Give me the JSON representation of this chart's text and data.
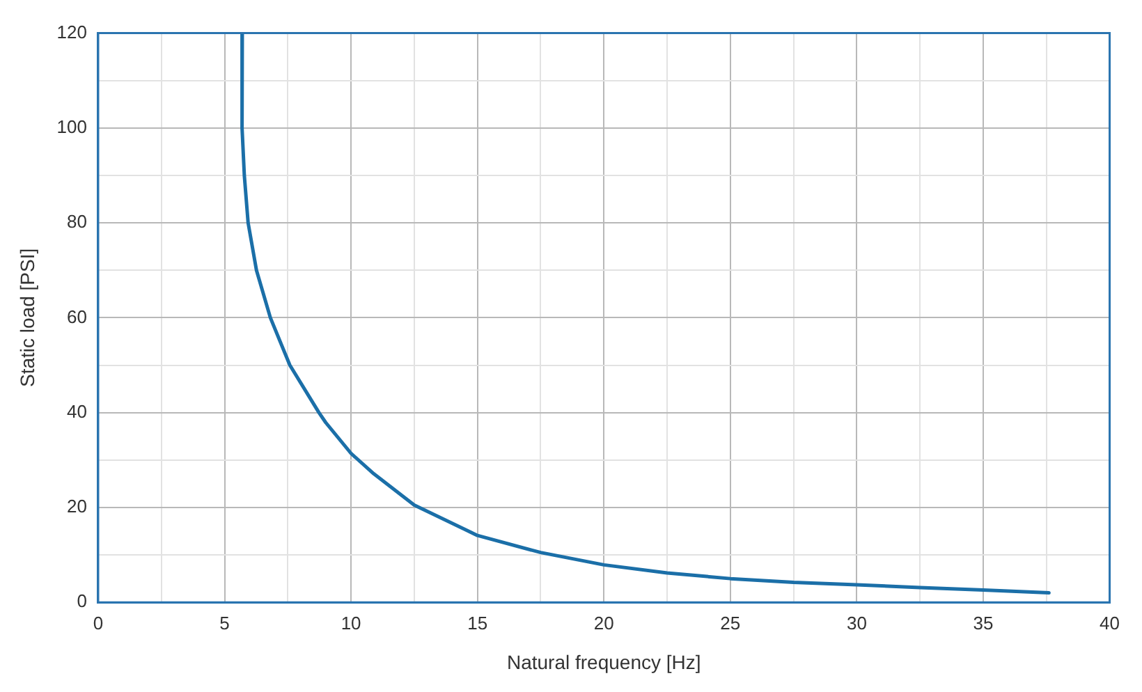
{
  "chart_data": {
    "type": "line",
    "xlabel": "Natural frequency [Hz]",
    "ylabel": "Static load [PSI]",
    "series": [
      {
        "color": "#1b6fa8",
        "x": [
          5.7,
          5.69,
          5.78,
          5.93,
          6.26,
          6.81,
          7.58,
          8.73,
          9.0,
          10.0,
          10.9,
          12.5,
          15.0,
          17.5,
          20.0,
          22.5,
          25.0,
          27.5,
          30.0,
          32.5,
          35.0,
          37.6
        ],
        "values": [
          120,
          100,
          90,
          80,
          70,
          60,
          50,
          40,
          37.9,
          31.4,
          27.1,
          20.5,
          14.1,
          10.5,
          7.9,
          6.2,
          5.0,
          4.2,
          3.7,
          3.1,
          2.6,
          2.0
        ]
      }
    ],
    "xlim": [
      0,
      40
    ],
    "ylim": [
      0,
      120
    ],
    "xticks": [
      0,
      {
        "value": 2.5,
        "label": null
      },
      5,
      {
        "value": 7.5,
        "label": null
      },
      10,
      {
        "value": 12.5,
        "label": null
      },
      15,
      {
        "value": 17.5,
        "label": null
      },
      20,
      {
        "value": 22.5,
        "label": null
      },
      25,
      {
        "value": 27.5,
        "label": null
      },
      30,
      {
        "value": 32.5,
        "label": null
      },
      35,
      {
        "value": 37.5,
        "label": null
      },
      40
    ],
    "yticks": [
      0,
      {
        "value": 10,
        "label": null
      },
      20,
      {
        "value": 30,
        "label": null
      },
      40,
      {
        "value": 50,
        "label": null
      },
      60,
      {
        "value": 70,
        "label": null
      },
      80,
      {
        "value": 90,
        "label": null
      },
      100,
      {
        "value": 110,
        "label": null
      },
      120
    ],
    "grid": true,
    "legend": false,
    "marker": "none",
    "line_style": "solid"
  }
}
